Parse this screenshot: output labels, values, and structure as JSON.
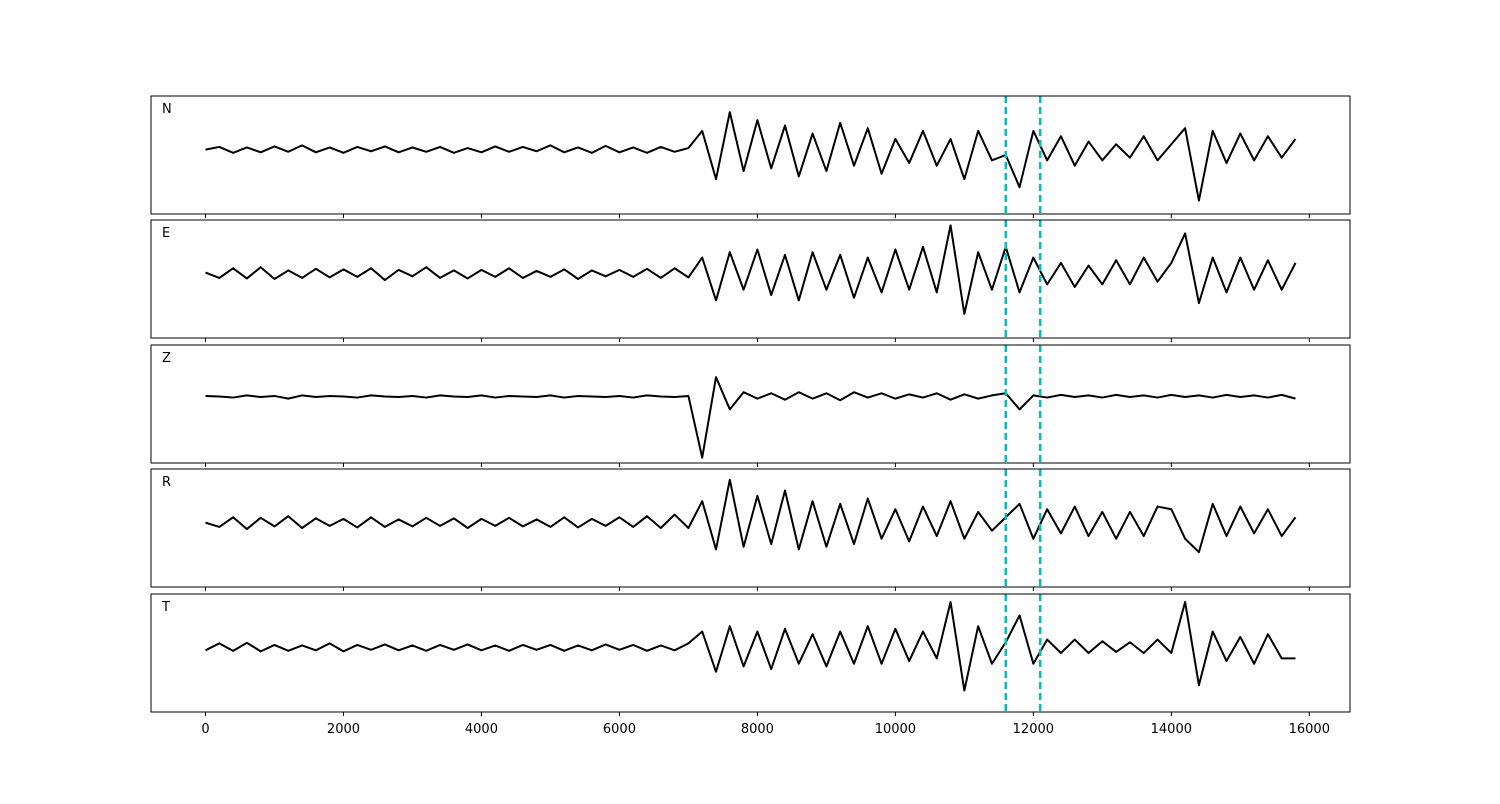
{
  "chart_data": [
    {
      "type": "line",
      "label": "N",
      "color": "#000000",
      "vlines": [
        11600,
        12100
      ],
      "vline_color": "#00bfbf",
      "xlim": [
        -790,
        16590
      ],
      "ylim": [
        -1.2,
        1.0
      ],
      "xticks": [
        0,
        2000,
        4000,
        6000,
        8000,
        10000,
        12000,
        14000,
        16000
      ],
      "tick_labels": false,
      "x": [
        0,
        200,
        400,
        600,
        800,
        1000,
        1200,
        1400,
        1600,
        1800,
        2000,
        2200,
        2400,
        2600,
        2800,
        3000,
        3200,
        3400,
        3600,
        3800,
        4000,
        4200,
        4400,
        4600,
        4800,
        5000,
        5200,
        5400,
        5600,
        5800,
        6000,
        6200,
        6400,
        6600,
        6800,
        7000,
        7200,
        7400,
        7600,
        7800,
        8000,
        8200,
        8400,
        8600,
        8800,
        9000,
        9200,
        9400,
        9600,
        9800,
        10000,
        10200,
        10400,
        10600,
        10800,
        11000,
        11200,
        11400,
        11600,
        11800,
        12000,
        12200,
        12400,
        12600,
        12800,
        13000,
        13200,
        13400,
        13600,
        13800,
        14000,
        14200,
        14400,
        14600,
        14800,
        15000,
        15200,
        15400,
        15600,
        15800
      ],
      "values": [
        0.0,
        0.05,
        -0.06,
        0.04,
        -0.05,
        0.06,
        -0.04,
        0.08,
        -0.05,
        0.04,
        -0.06,
        0.05,
        -0.03,
        0.06,
        -0.05,
        0.04,
        -0.04,
        0.05,
        -0.06,
        0.03,
        -0.05,
        0.06,
        -0.04,
        0.05,
        -0.03,
        0.08,
        -0.05,
        0.04,
        -0.06,
        0.07,
        -0.05,
        0.04,
        -0.06,
        0.05,
        -0.04,
        0.03,
        0.35,
        -0.55,
        0.7,
        -0.4,
        0.55,
        -0.35,
        0.45,
        -0.5,
        0.3,
        -0.4,
        0.5,
        -0.3,
        0.4,
        -0.45,
        0.2,
        -0.25,
        0.35,
        -0.3,
        0.2,
        -0.55,
        0.35,
        -0.2,
        -0.1,
        -0.7,
        0.35,
        -0.2,
        0.25,
        -0.3,
        0.15,
        -0.2,
        0.1,
        -0.15,
        0.25,
        -0.2,
        0.1,
        0.4,
        -0.95,
        0.35,
        -0.25,
        0.3,
        -0.2,
        0.25,
        -0.15,
        0.2
      ]
    },
    {
      "type": "line",
      "label": "E",
      "color": "#000000",
      "vlines": [
        11600,
        12100
      ],
      "vline_color": "#00bfbf",
      "xlim": [
        -790,
        16590
      ],
      "ylim": [
        -1.2,
        1.0
      ],
      "xticks": [
        0,
        2000,
        4000,
        6000,
        8000,
        10000,
        12000,
        14000,
        16000
      ],
      "tick_labels": false,
      "x": [
        0,
        200,
        400,
        600,
        800,
        1000,
        1200,
        1400,
        1600,
        1800,
        2000,
        2200,
        2400,
        2600,
        2800,
        3000,
        3200,
        3400,
        3600,
        3800,
        4000,
        4200,
        4400,
        4600,
        4800,
        5000,
        5200,
        5400,
        5600,
        5800,
        6000,
        6200,
        6400,
        6600,
        6800,
        7000,
        7200,
        7400,
        7600,
        7800,
        8000,
        8200,
        8400,
        8600,
        8800,
        9000,
        9200,
        9400,
        9600,
        9800,
        10000,
        10200,
        10400,
        10600,
        10800,
        11000,
        11200,
        11400,
        11600,
        11800,
        12000,
        12200,
        12400,
        12600,
        12800,
        13000,
        13200,
        13400,
        13600,
        13800,
        14000,
        14200,
        14400,
        14600,
        14800,
        15000,
        15200,
        15400,
        15600,
        15800
      ],
      "values": [
        0.02,
        -0.08,
        0.1,
        -0.09,
        0.12,
        -0.1,
        0.06,
        -0.08,
        0.09,
        -0.07,
        0.08,
        -0.06,
        0.1,
        -0.12,
        0.07,
        -0.05,
        0.12,
        -0.08,
        0.06,
        -0.09,
        0.07,
        -0.06,
        0.1,
        -0.08,
        0.05,
        -0.06,
        0.08,
        -0.1,
        0.06,
        -0.05,
        0.07,
        -0.06,
        0.09,
        -0.08,
        0.1,
        -0.07,
        0.3,
        -0.5,
        0.4,
        -0.3,
        0.45,
        -0.4,
        0.35,
        -0.5,
        0.4,
        -0.3,
        0.35,
        -0.45,
        0.3,
        -0.35,
        0.45,
        -0.3,
        0.5,
        -0.35,
        0.9,
        -0.75,
        0.4,
        -0.3,
        0.5,
        -0.35,
        0.3,
        -0.2,
        0.2,
        -0.25,
        0.15,
        -0.2,
        0.25,
        -0.2,
        0.3,
        -0.15,
        0.2,
        0.75,
        -0.55,
        0.3,
        -0.35,
        0.3,
        -0.3,
        0.25,
        -0.3,
        0.2
      ]
    },
    {
      "type": "line",
      "label": "Z",
      "color": "#000000",
      "vlines": [
        11600,
        12100
      ],
      "vline_color": "#00bfbf",
      "xlim": [
        -790,
        16590
      ],
      "ylim": [
        -1.2,
        1.0
      ],
      "xticks": [
        0,
        2000,
        4000,
        6000,
        8000,
        10000,
        12000,
        14000,
        16000
      ],
      "tick_labels": false,
      "x": [
        0,
        200,
        400,
        600,
        800,
        1000,
        1200,
        1400,
        1600,
        1800,
        2000,
        2200,
        2400,
        2600,
        2800,
        3000,
        3200,
        3400,
        3600,
        3800,
        4000,
        4200,
        4400,
        4600,
        4800,
        5000,
        5200,
        5400,
        5600,
        5800,
        6000,
        6200,
        6400,
        6600,
        6800,
        7000,
        7200,
        7400,
        7600,
        7800,
        8000,
        8200,
        8400,
        8600,
        8800,
        9000,
        9200,
        9400,
        9600,
        9800,
        10000,
        10200,
        10400,
        10600,
        10800,
        11000,
        11200,
        11400,
        11600,
        11800,
        12000,
        12200,
        12400,
        12600,
        12800,
        13000,
        13200,
        13400,
        13600,
        13800,
        14000,
        14200,
        14400,
        14600,
        14800,
        15000,
        15200,
        15400,
        15600,
        15800
      ],
      "values": [
        0.05,
        0.04,
        0.02,
        0.06,
        0.03,
        0.05,
        0.0,
        0.06,
        0.03,
        0.05,
        0.04,
        0.02,
        0.06,
        0.04,
        0.03,
        0.05,
        0.02,
        0.06,
        0.04,
        0.03,
        0.06,
        0.02,
        0.05,
        0.04,
        0.03,
        0.06,
        0.02,
        0.05,
        0.04,
        0.03,
        0.05,
        0.02,
        0.06,
        0.04,
        0.03,
        0.05,
        -1.1,
        0.4,
        -0.2,
        0.12,
        0.0,
        0.1,
        -0.02,
        0.12,
        0.0,
        0.1,
        -0.03,
        0.12,
        0.02,
        0.1,
        0.0,
        0.08,
        0.02,
        0.1,
        -0.02,
        0.08,
        0.0,
        0.06,
        0.1,
        -0.2,
        0.06,
        0.02,
        0.07,
        0.03,
        0.06,
        0.02,
        0.07,
        0.03,
        0.06,
        0.02,
        0.07,
        0.03,
        0.06,
        0.02,
        0.07,
        0.03,
        0.06,
        0.02,
        0.07,
        0.0
      ]
    },
    {
      "type": "line",
      "label": "R",
      "color": "#000000",
      "vlines": [
        11600,
        12100
      ],
      "vline_color": "#00bfbf",
      "xlim": [
        -790,
        16590
      ],
      "ylim": [
        -1.2,
        1.0
      ],
      "xticks": [
        0,
        2000,
        4000,
        6000,
        8000,
        10000,
        12000,
        14000,
        16000
      ],
      "tick_labels": false,
      "x": [
        0,
        200,
        400,
        600,
        800,
        1000,
        1200,
        1400,
        1600,
        1800,
        2000,
        2200,
        2400,
        2600,
        2800,
        3000,
        3200,
        3400,
        3600,
        3800,
        4000,
        4200,
        4400,
        4600,
        4800,
        5000,
        5200,
        5400,
        5600,
        5800,
        6000,
        6200,
        6400,
        6600,
        6800,
        7000,
        7200,
        7400,
        7600,
        7800,
        8000,
        8200,
        8400,
        8600,
        8800,
        9000,
        9200,
        9400,
        9600,
        9800,
        10000,
        10200,
        10400,
        10600,
        10800,
        11000,
        11200,
        11400,
        11600,
        11800,
        12000,
        12200,
        12400,
        12600,
        12800,
        13000,
        13200,
        13400,
        13600,
        13800,
        14000,
        14200,
        14400,
        14600,
        14800,
        15000,
        15200,
        15400,
        15600,
        15800
      ],
      "values": [
        0.0,
        -0.08,
        0.1,
        -0.12,
        0.09,
        -0.07,
        0.12,
        -0.1,
        0.08,
        -0.06,
        0.07,
        -0.09,
        0.1,
        -0.08,
        0.06,
        -0.07,
        0.09,
        -0.06,
        0.08,
        -0.1,
        0.07,
        -0.06,
        0.09,
        -0.07,
        0.06,
        -0.08,
        0.1,
        -0.09,
        0.07,
        -0.06,
        0.1,
        -0.08,
        0.12,
        -0.1,
        0.15,
        -0.1,
        0.4,
        -0.5,
        0.8,
        -0.45,
        0.5,
        -0.4,
        0.6,
        -0.5,
        0.4,
        -0.45,
        0.35,
        -0.4,
        0.45,
        -0.3,
        0.25,
        -0.35,
        0.3,
        -0.25,
        0.4,
        -0.3,
        0.2,
        -0.15,
        0.1,
        0.35,
        -0.3,
        0.25,
        -0.2,
        0.3,
        -0.25,
        0.2,
        -0.3,
        0.2,
        -0.25,
        0.3,
        0.25,
        -0.3,
        -0.55,
        0.35,
        -0.25,
        0.3,
        -0.2,
        0.25,
        -0.25,
        0.1
      ]
    },
    {
      "type": "line",
      "label": "T",
      "color": "#000000",
      "vlines": [
        11600,
        12100
      ],
      "vline_color": "#00bfbf",
      "xlim": [
        -790,
        16590
      ],
      "ylim": [
        -1.2,
        1.0
      ],
      "xticks": [
        0,
        2000,
        4000,
        6000,
        8000,
        10000,
        12000,
        14000,
        16000
      ],
      "tick_labels": true,
      "x": [
        0,
        200,
        400,
        600,
        800,
        1000,
        1200,
        1400,
        1600,
        1800,
        2000,
        2200,
        2400,
        2600,
        2800,
        3000,
        3200,
        3400,
        3600,
        3800,
        4000,
        4200,
        4400,
        4600,
        4800,
        5000,
        5200,
        5400,
        5600,
        5800,
        6000,
        6200,
        6400,
        6600,
        6800,
        7000,
        7200,
        7400,
        7600,
        7800,
        8000,
        8200,
        8400,
        8600,
        8800,
        9000,
        9200,
        9400,
        9600,
        9800,
        10000,
        10200,
        10400,
        10600,
        10800,
        11000,
        11200,
        11400,
        11600,
        11800,
        12000,
        12200,
        12400,
        12600,
        12800,
        13000,
        13200,
        13400,
        13600,
        13800,
        14000,
        14200,
        14400,
        14600,
        14800,
        15000,
        15200,
        15400,
        15600,
        15800
      ],
      "values": [
        -0.05,
        0.08,
        -0.06,
        0.09,
        -0.07,
        0.05,
        -0.06,
        0.04,
        -0.05,
        0.08,
        -0.07,
        0.05,
        -0.04,
        0.06,
        -0.05,
        0.04,
        -0.06,
        0.05,
        -0.04,
        0.06,
        -0.05,
        0.04,
        -0.06,
        0.05,
        -0.04,
        0.05,
        -0.06,
        0.04,
        -0.05,
        0.06,
        -0.04,
        0.05,
        -0.06,
        0.04,
        -0.05,
        0.08,
        0.3,
        -0.45,
        0.4,
        -0.35,
        0.3,
        -0.4,
        0.35,
        -0.3,
        0.25,
        -0.35,
        0.3,
        -0.3,
        0.4,
        -0.3,
        0.35,
        -0.25,
        0.3,
        -0.2,
        0.85,
        -0.8,
        0.4,
        -0.3,
        0.1,
        0.6,
        -0.3,
        0.15,
        -0.1,
        0.15,
        -0.1,
        0.12,
        -0.08,
        0.1,
        -0.1,
        0.15,
        -0.1,
        0.85,
        -0.7,
        0.3,
        -0.25,
        0.2,
        -0.3,
        0.25,
        -0.2,
        -0.2
      ]
    }
  ]
}
